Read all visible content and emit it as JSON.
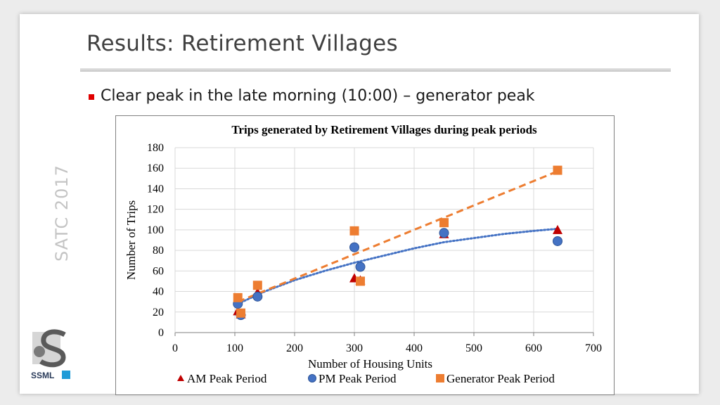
{
  "slide": {
    "title": "Results: Retirement Villages",
    "side_label": "SATC 2017",
    "bullet": "Clear peak in the late morning (10:00) – generator peak",
    "logo_text": "SSML"
  },
  "colors": {
    "am": "#c00000",
    "pm": "#4472c4",
    "generator": "#ed7d31",
    "grid": "#d9d9d9",
    "bullet": "#e00000"
  },
  "chart_data": {
    "type": "scatter",
    "title": "Trips generated by Retirement Villages during peak periods",
    "xlabel": "Number of Housing Units",
    "ylabel": "Number of Trips",
    "xlim": [
      0,
      700
    ],
    "ylim": [
      0,
      180
    ],
    "xticks": [
      0,
      100,
      200,
      300,
      400,
      500,
      600,
      700
    ],
    "yticks": [
      0,
      20,
      40,
      60,
      80,
      100,
      120,
      140,
      160,
      180
    ],
    "grid": true,
    "legend": "bottom",
    "series": [
      {
        "name": "AM Peak Period",
        "marker": "triangle",
        "color": "#c00000",
        "points": [
          [
            105,
            21
          ],
          [
            110,
            18
          ],
          [
            138,
            39
          ],
          [
            300,
            53
          ],
          [
            310,
            51
          ],
          [
            450,
            96
          ],
          [
            640,
            100
          ]
        ]
      },
      {
        "name": "PM Peak Period",
        "marker": "circle",
        "color": "#4472c4",
        "points": [
          [
            105,
            28
          ],
          [
            110,
            17
          ],
          [
            138,
            35
          ],
          [
            300,
            83
          ],
          [
            310,
            64
          ],
          [
            450,
            97
          ],
          [
            640,
            89
          ]
        ]
      },
      {
        "name": "Generator Peak Period",
        "marker": "square",
        "color": "#ed7d31",
        "points": [
          [
            105,
            34
          ],
          [
            110,
            19
          ],
          [
            138,
            46
          ],
          [
            300,
            99
          ],
          [
            310,
            50
          ],
          [
            450,
            107
          ],
          [
            640,
            158
          ]
        ]
      }
    ],
    "trendlines": [
      {
        "series": "PM Peak Period",
        "style": "dotted",
        "color": "#4472c4",
        "fit": "power",
        "points": [
          [
            105,
            28
          ],
          [
            150,
            40
          ],
          [
            200,
            51
          ],
          [
            250,
            60
          ],
          [
            300,
            68
          ],
          [
            350,
            75
          ],
          [
            400,
            82
          ],
          [
            450,
            88
          ],
          [
            500,
            92
          ],
          [
            550,
            96
          ],
          [
            600,
            99
          ],
          [
            640,
            101
          ]
        ]
      },
      {
        "series": "Generator Peak Period",
        "style": "dashed",
        "color": "#ed7d31",
        "fit": "linear",
        "points": [
          [
            105,
            30
          ],
          [
            640,
            157
          ]
        ]
      }
    ]
  }
}
